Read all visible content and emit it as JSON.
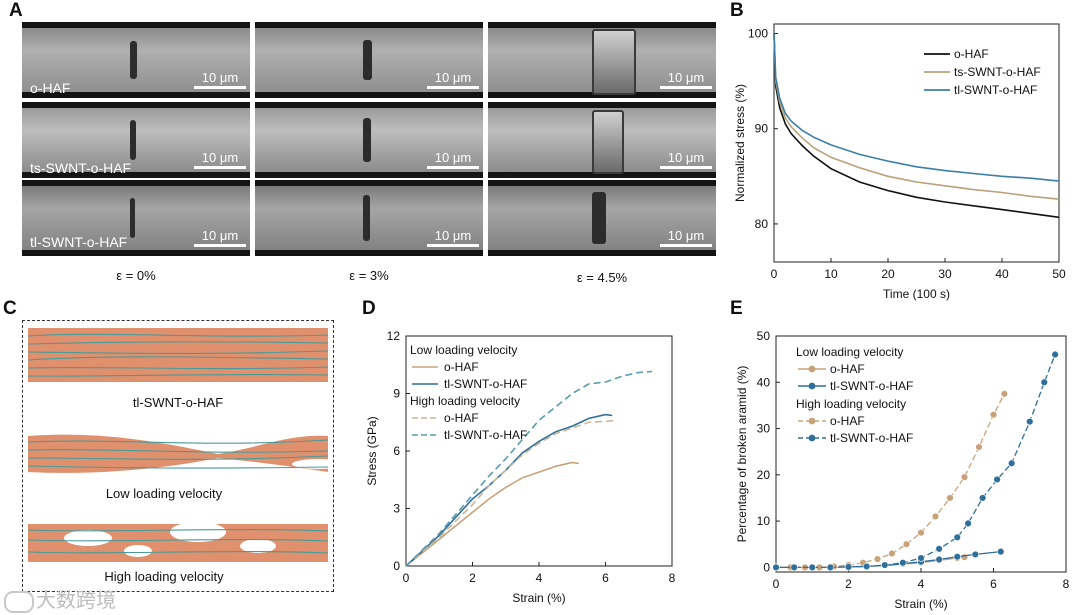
{
  "panels": {
    "A": {
      "label": "A",
      "rows": [
        "o-HAF",
        "ts-SWNT-o-HAF",
        "tl-SWNT-o-HAF"
      ],
      "strains": [
        "ε = 0%",
        "ε = 3%",
        "ε = 4.5%"
      ],
      "scale_bar": "10 μm"
    },
    "B": {
      "label": "B"
    },
    "C": {
      "label": "C",
      "captions": [
        "tl-SWNT-o-HAF",
        "Low loading velocity",
        "High loading velocity"
      ],
      "colors": {
        "matrix": "#e0906c",
        "cnt": "#4a9a9a"
      }
    },
    "D": {
      "label": "D"
    },
    "E": {
      "label": "E"
    }
  },
  "watermark": "大数跨境",
  "chart_data": [
    {
      "id": "B",
      "type": "line",
      "title": "",
      "xlabel": "Time (100 s)",
      "ylabel": "Normalized stress (%)",
      "xlim": [
        0,
        50
      ],
      "ylim": [
        76,
        101
      ],
      "xticks": [
        0,
        10,
        20,
        30,
        40,
        50
      ],
      "yticks": [
        80,
        90,
        100
      ],
      "legend": "top-right",
      "x": [
        0,
        0.3,
        1,
        2,
        3,
        5,
        7,
        10,
        15,
        20,
        25,
        30,
        35,
        40,
        45,
        50
      ],
      "series": [
        {
          "name": "o-HAF",
          "color": "#111111",
          "values": [
            100,
            94.5,
            92.2,
            90.5,
            89.5,
            88.2,
            87.1,
            85.8,
            84.4,
            83.5,
            82.8,
            82.3,
            81.9,
            81.5,
            81.1,
            80.7
          ]
        },
        {
          "name": "ts-SWNT-o-HAF",
          "color": "#b8a27a",
          "values": [
            100,
            95.0,
            92.8,
            91.1,
            90.2,
            89.0,
            88.0,
            87.0,
            85.9,
            85.0,
            84.4,
            84.0,
            83.6,
            83.3,
            82.9,
            82.6
          ]
        },
        {
          "name": "tl-SWNT-o-HAF",
          "color": "#3b7ea8",
          "values": [
            100,
            95.4,
            93.2,
            91.6,
            90.8,
            89.8,
            89.1,
            88.3,
            87.3,
            86.6,
            86.0,
            85.6,
            85.3,
            85.0,
            84.8,
            84.5
          ]
        }
      ]
    },
    {
      "id": "D",
      "type": "line",
      "title": "",
      "xlabel": "Strain (%)",
      "ylabel": "Stress (GPa)",
      "xlim": [
        0,
        8
      ],
      "ylim": [
        0,
        12
      ],
      "xticks": [
        0,
        2,
        4,
        6,
        8
      ],
      "yticks": [
        0,
        3,
        6,
        9,
        12
      ],
      "legend": "top-left",
      "legend_groups": [
        "Low loading velocity",
        "High loading velocity"
      ],
      "series": [
        {
          "name": "o-HAF",
          "group": "Low loading velocity",
          "color": "#c9a27a",
          "dash": false,
          "x": [
            0,
            1,
            2,
            2.5,
            3,
            3.5,
            4,
            4.5,
            5,
            5.2
          ],
          "y": [
            0,
            1.4,
            2.8,
            3.5,
            4.1,
            4.6,
            4.9,
            5.2,
            5.4,
            5.35
          ]
        },
        {
          "name": "tl-SWNT-o-HAF",
          "group": "Low loading velocity",
          "color": "#2f6f99",
          "dash": false,
          "x": [
            0,
            1,
            2,
            2.5,
            3,
            3.5,
            4,
            4.5,
            5,
            5.5,
            6,
            6.2
          ],
          "y": [
            0,
            1.6,
            3.5,
            4.2,
            5.0,
            5.9,
            6.5,
            7.0,
            7.3,
            7.7,
            7.9,
            7.85
          ]
        },
        {
          "name": "o-HAF",
          "group": "High loading velocity",
          "color": "#c9b69a",
          "dash": true,
          "x": [
            0,
            1,
            2,
            2.5,
            3,
            3.5,
            4,
            4.5,
            5,
            5.5,
            6,
            6.3
          ],
          "y": [
            0,
            1.5,
            3.2,
            4.2,
            5.0,
            5.8,
            6.4,
            6.9,
            7.2,
            7.5,
            7.55,
            7.6
          ]
        },
        {
          "name": "tl-SWNT-o-HAF",
          "group": "High loading velocity",
          "color": "#5a9bb0",
          "dash": true,
          "x": [
            0,
            1,
            2,
            2.5,
            3,
            3.5,
            4,
            4.5,
            5,
            5.5,
            6,
            6.5,
            7,
            7.4
          ],
          "y": [
            0,
            1.7,
            3.7,
            4.7,
            5.6,
            6.6,
            7.6,
            8.3,
            9.0,
            9.5,
            9.6,
            9.9,
            10.1,
            10.15
          ]
        }
      ]
    },
    {
      "id": "E",
      "type": "scatter",
      "title": "",
      "xlabel": "Strain (%)",
      "ylabel": "Percentage of broken aramid (%)",
      "xlim": [
        0,
        8
      ],
      "ylim": [
        -1,
        50
      ],
      "xticks": [
        0,
        2,
        4,
        6,
        8
      ],
      "yticks": [
        0,
        10,
        20,
        30,
        40,
        50
      ],
      "legend": "top-left",
      "legend_groups": [
        "Low loading velocity",
        "High loading velocity"
      ],
      "series": [
        {
          "name": "o-HAF",
          "group": "Low loading velocity",
          "color": "#c9a27a",
          "dash": false,
          "x": [
            0,
            0.5,
            1,
            1.5,
            2,
            2.5,
            3,
            3.5,
            4,
            4.5,
            5,
            5.2
          ],
          "y": [
            0,
            0,
            0,
            0,
            0.1,
            0.2,
            0.4,
            0.7,
            1.0,
            1.5,
            2.0,
            2.2
          ]
        },
        {
          "name": "tl-SWNT-o-HAF",
          "group": "Low loading velocity",
          "color": "#2f6f99",
          "dash": false,
          "x": [
            0,
            0.5,
            1,
            1.5,
            2,
            2.5,
            3,
            3.5,
            4,
            4.5,
            5,
            5.5,
            6.2
          ],
          "y": [
            0,
            0,
            0,
            0,
            0.1,
            0.2,
            0.4,
            0.8,
            1.2,
            1.7,
            2.3,
            2.8,
            3.4
          ]
        },
        {
          "name": "o-HAF",
          "group": "High loading velocity",
          "color": "#c9a27a",
          "dash": true,
          "x": [
            0,
            0.4,
            0.8,
            1.2,
            1.6,
            2.0,
            2.4,
            2.8,
            3.2,
            3.6,
            4.0,
            4.4,
            4.8,
            5.2,
            5.6,
            6.0,
            6.3
          ],
          "y": [
            0,
            0,
            0,
            0,
            0.2,
            0.5,
            1.0,
            1.8,
            3.0,
            5.0,
            7.5,
            11.0,
            15.0,
            19.5,
            26.0,
            33.0,
            37.5
          ]
        },
        {
          "name": "tl-SWNT-o-HAF",
          "group": "High loading velocity",
          "color": "#2f6f99",
          "dash": true,
          "x": [
            0,
            0.5,
            1,
            1.5,
            2,
            2.5,
            3,
            3.5,
            4,
            4.5,
            5,
            5.3,
            5.7,
            6.1,
            6.5,
            7.0,
            7.4,
            7.7
          ],
          "y": [
            0,
            0,
            0,
            0,
            0.1,
            0.2,
            0.5,
            1.0,
            2.0,
            4.0,
            6.5,
            9.5,
            15.0,
            19.0,
            22.5,
            31.5,
            40.0,
            46.0
          ]
        }
      ]
    }
  ]
}
